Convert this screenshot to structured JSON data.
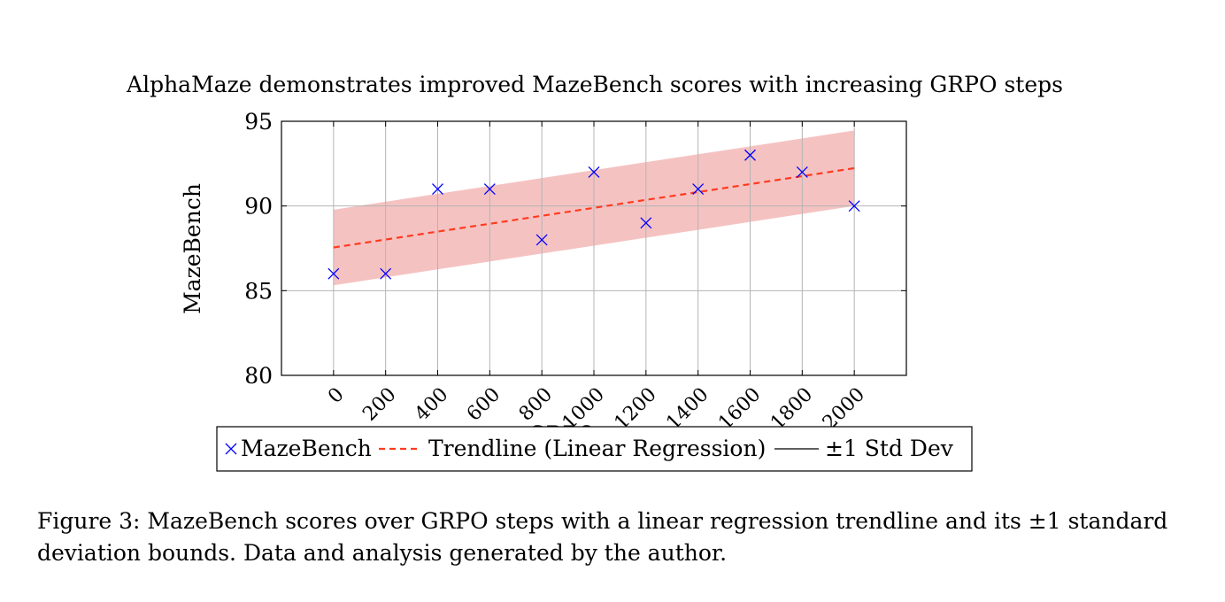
{
  "chart_data": {
    "type": "scatter",
    "title": "AlphaMaze demonstrates improved MazeBench scores with increasing GRPO steps",
    "xlabel": "GRPO steps",
    "ylabel": "MazeBench",
    "x": [
      0,
      200,
      400,
      600,
      800,
      1000,
      1200,
      1400,
      1600,
      1800,
      2000
    ],
    "xlim": [
      -200,
      2200
    ],
    "ylim": [
      80,
      95
    ],
    "xticks": [
      "0",
      "200",
      "400",
      "600",
      "800",
      "1000",
      "1200",
      "1400",
      "1600",
      "1800",
      "2000"
    ],
    "yticks": [
      "80",
      "85",
      "90",
      "95"
    ],
    "grid": true,
    "series": [
      {
        "name": "MazeBench",
        "kind": "scatter",
        "marker": "x",
        "color": "#0000ff",
        "values": [
          86,
          86,
          91,
          91,
          88,
          92,
          89,
          91,
          93,
          92,
          90
        ]
      },
      {
        "name": "Trendline (Linear Regression)",
        "kind": "line",
        "style": "dashed",
        "color": "#ff3b1f",
        "values": [
          87.55,
          88.02,
          88.49,
          88.95,
          89.42,
          89.89,
          90.36,
          90.82,
          91.29,
          91.76,
          92.23
        ]
      },
      {
        "name": "±1 Std Dev",
        "kind": "band",
        "color": "#f5c2c2",
        "line_color": "#000000",
        "lower": [
          85.32,
          85.79,
          86.26,
          86.72,
          87.19,
          87.66,
          88.13,
          88.59,
          89.06,
          89.53,
          90.0
        ],
        "upper": [
          89.78,
          90.25,
          90.72,
          91.18,
          91.65,
          92.12,
          92.59,
          93.05,
          93.52,
          93.99,
          94.46
        ]
      }
    ],
    "legend_position": "bottom"
  },
  "caption": "Figure 3: MazeBench scores over GRPO steps with a linear regression trendline and its ±1 standard deviation bounds. Data and analysis generated by the author."
}
